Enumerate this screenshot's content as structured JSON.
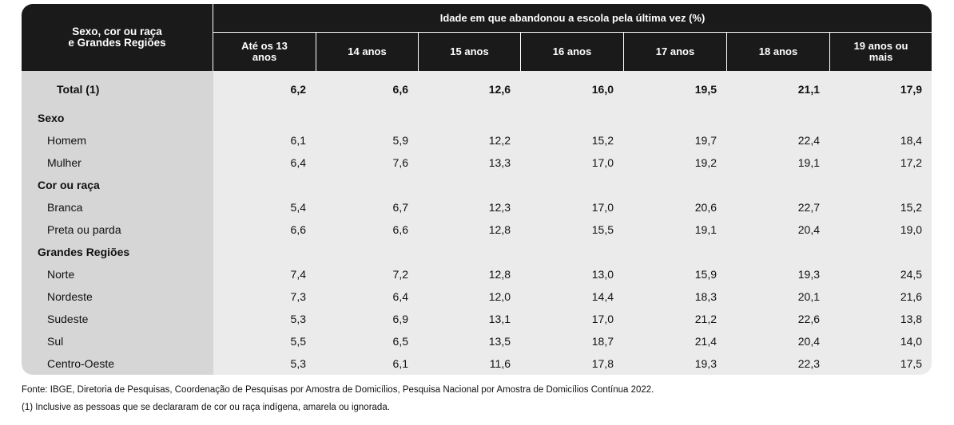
{
  "table": {
    "corner_label": [
      "Sexo, cor ou raça",
      "e Grandes Regiões"
    ],
    "group_header": "Idade em que abandonou a escola pela última vez (%)",
    "columns": [
      [
        "Até os 13",
        "anos"
      ],
      [
        "14 anos"
      ],
      [
        "15 anos"
      ],
      [
        "16 anos"
      ],
      [
        "17 anos"
      ],
      [
        "18 anos"
      ],
      [
        "19 anos ou",
        "mais"
      ]
    ],
    "rows": [
      {
        "kind": "total",
        "label": "Total (1)",
        "values": [
          "6,2",
          "6,6",
          "12,6",
          "16,0",
          "19,5",
          "21,1",
          "17,9"
        ]
      },
      {
        "kind": "group",
        "label": "Sexo",
        "values": []
      },
      {
        "kind": "item",
        "label": "Homem",
        "values": [
          "6,1",
          "5,9",
          "12,2",
          "15,2",
          "19,7",
          "22,4",
          "18,4"
        ]
      },
      {
        "kind": "item",
        "label": "Mulher",
        "values": [
          "6,4",
          "7,6",
          "13,3",
          "17,0",
          "19,2",
          "19,1",
          "17,2"
        ]
      },
      {
        "kind": "group",
        "label": "Cor ou raça",
        "values": []
      },
      {
        "kind": "item",
        "label": "Branca",
        "values": [
          "5,4",
          "6,7",
          "12,3",
          "17,0",
          "20,6",
          "22,7",
          "15,2"
        ]
      },
      {
        "kind": "item",
        "label": "Preta ou parda",
        "values": [
          "6,6",
          "6,6",
          "12,8",
          "15,5",
          "19,1",
          "20,4",
          "19,0"
        ]
      },
      {
        "kind": "group",
        "label": "Grandes Regiões",
        "values": []
      },
      {
        "kind": "item",
        "label": "Norte",
        "values": [
          "7,4",
          "7,2",
          "12,8",
          "13,0",
          "15,9",
          "19,3",
          "24,5"
        ]
      },
      {
        "kind": "item",
        "label": "Nordeste",
        "values": [
          "7,3",
          "6,4",
          "12,0",
          "14,4",
          "18,3",
          "20,1",
          "21,6"
        ]
      },
      {
        "kind": "item",
        "label": "Sudeste",
        "values": [
          "5,3",
          "6,9",
          "13,1",
          "17,0",
          "21,2",
          "22,6",
          "13,8"
        ]
      },
      {
        "kind": "item",
        "label": "Sul",
        "values": [
          "5,5",
          "6,5",
          "13,5",
          "18,7",
          "21,4",
          "20,4",
          "14,0"
        ]
      },
      {
        "kind": "item",
        "label": "Centro-Oeste",
        "values": [
          "5,3",
          "6,1",
          "11,6",
          "17,8",
          "19,3",
          "22,3",
          "17,5"
        ]
      }
    ]
  },
  "notes": {
    "source": "Fonte: IBGE, Diretoria de Pesquisas, Coordenação de Pesquisas por Amostra de Domicílios, Pesquisa Nacional por Amostra de Domicílios Contínua 2022.",
    "footnote": "(1) Inclusive as pessoas que se declararam de cor ou raça indígena, amarela ou ignorada."
  }
}
